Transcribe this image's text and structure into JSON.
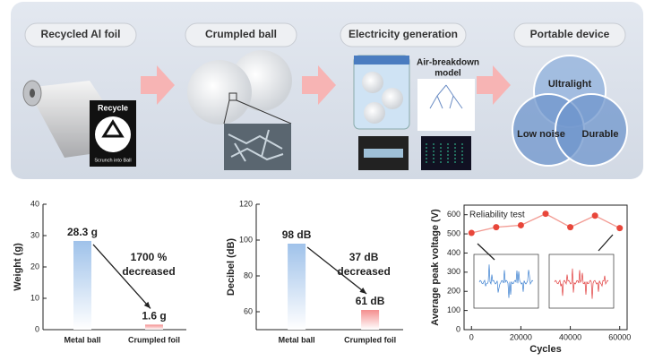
{
  "diagram": {
    "steps": [
      "Recycled Al foil",
      "Crumpled ball",
      "Electricity generation",
      "Portable device"
    ],
    "recycle_label": "Recycle",
    "recycle_caption": "Scrunch into Ball",
    "model_label": [
      "Air-breakdown",
      "model"
    ],
    "venn": [
      "Ultralight",
      "Low noise",
      "Durable"
    ]
  },
  "chart_data": [
    {
      "type": "bar",
      "ylabel": "Weight (g)",
      "categories": [
        "Metal ball",
        "Crumpled foil"
      ],
      "values": [
        28.3,
        1.6
      ],
      "value_labels": [
        "28.3 g",
        "1.6 g"
      ],
      "colors": [
        "#9fc2ea",
        "#f48e8e"
      ],
      "ylim": [
        0,
        40
      ],
      "yticks": [
        0,
        10,
        20,
        30,
        40
      ],
      "annotation": [
        "1700 %",
        "decreased"
      ]
    },
    {
      "type": "bar",
      "ylabel": "Decibel (dB)",
      "categories": [
        "Metal ball",
        "Crumpled foil"
      ],
      "values": [
        98,
        61
      ],
      "value_labels": [
        "98 dB",
        "61 dB"
      ],
      "colors": [
        "#9fc2ea",
        "#f48e8e"
      ],
      "ylim": [
        50,
        120
      ],
      "yticks": [
        60,
        80,
        100,
        120
      ],
      "annotation": [
        "37 dB",
        "decreased"
      ]
    },
    {
      "type": "line",
      "title": "Reliability test",
      "xlabel": "Cycles",
      "ylabel": "Average peak voltage (V)",
      "x": [
        0,
        10000,
        20000,
        30000,
        40000,
        50000,
        60000
      ],
      "values": [
        505,
        535,
        545,
        605,
        535,
        595,
        530
      ],
      "color": "#e8463a",
      "xlim": [
        -3000,
        63000
      ],
      "ylim": [
        0,
        650
      ],
      "xticks": [
        0,
        20000,
        40000,
        60000
      ],
      "yticks": [
        0,
        100,
        200,
        300,
        400,
        500,
        600
      ]
    }
  ]
}
